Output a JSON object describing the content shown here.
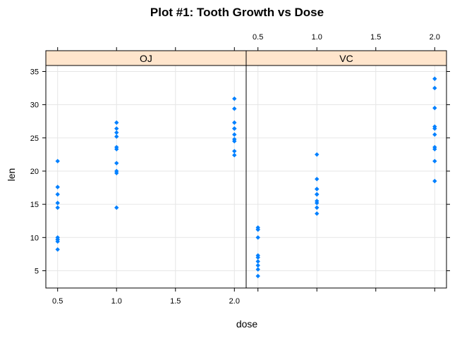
{
  "chart_data": {
    "type": "scatter",
    "title": "Plot #1: Tooth Growth vs Dose",
    "xlabel": "dose",
    "ylabel": "len",
    "xlim": [
      0.4,
      2.1
    ],
    "ylim": [
      2.4,
      35.9
    ],
    "xticks": [
      0.5,
      1.0,
      1.5,
      2.0
    ],
    "xtick_labels": [
      "0.5",
      "1.0",
      "1.5",
      "2.0"
    ],
    "yticks": [
      5,
      10,
      15,
      20,
      25,
      30,
      35
    ],
    "ytick_labels": [
      "5",
      "10",
      "15",
      "20",
      "25",
      "30",
      "35"
    ],
    "grid": true,
    "point_color": "#0080ff",
    "strip_color": "#ffe5cc",
    "panels": [
      {
        "name": "OJ",
        "points": [
          {
            "x": 0.5,
            "y": 15.2
          },
          {
            "x": 0.5,
            "y": 21.5
          },
          {
            "x": 0.5,
            "y": 17.6
          },
          {
            "x": 0.5,
            "y": 9.7
          },
          {
            "x": 0.5,
            "y": 14.5
          },
          {
            "x": 0.5,
            "y": 10.0
          },
          {
            "x": 0.5,
            "y": 8.2
          },
          {
            "x": 0.5,
            "y": 9.4
          },
          {
            "x": 0.5,
            "y": 16.5
          },
          {
            "x": 0.5,
            "y": 9.7
          },
          {
            "x": 1.0,
            "y": 19.7
          },
          {
            "x": 1.0,
            "y": 23.3
          },
          {
            "x": 1.0,
            "y": 23.6
          },
          {
            "x": 1.0,
            "y": 26.4
          },
          {
            "x": 1.0,
            "y": 20.0
          },
          {
            "x": 1.0,
            "y": 25.2
          },
          {
            "x": 1.0,
            "y": 25.8
          },
          {
            "x": 1.0,
            "y": 21.2
          },
          {
            "x": 1.0,
            "y": 14.5
          },
          {
            "x": 1.0,
            "y": 27.3
          },
          {
            "x": 2.0,
            "y": 25.5
          },
          {
            "x": 2.0,
            "y": 26.4
          },
          {
            "x": 2.0,
            "y": 22.4
          },
          {
            "x": 2.0,
            "y": 24.5
          },
          {
            "x": 2.0,
            "y": 24.8
          },
          {
            "x": 2.0,
            "y": 30.9
          },
          {
            "x": 2.0,
            "y": 26.4
          },
          {
            "x": 2.0,
            "y": 27.3
          },
          {
            "x": 2.0,
            "y": 29.4
          },
          {
            "x": 2.0,
            "y": 23.0
          }
        ]
      },
      {
        "name": "VC",
        "points": [
          {
            "x": 0.5,
            "y": 4.2
          },
          {
            "x": 0.5,
            "y": 11.5
          },
          {
            "x": 0.5,
            "y": 7.3
          },
          {
            "x": 0.5,
            "y": 5.8
          },
          {
            "x": 0.5,
            "y": 6.4
          },
          {
            "x": 0.5,
            "y": 10.0
          },
          {
            "x": 0.5,
            "y": 11.2
          },
          {
            "x": 0.5,
            "y": 11.2
          },
          {
            "x": 0.5,
            "y": 5.2
          },
          {
            "x": 0.5,
            "y": 7.0
          },
          {
            "x": 1.0,
            "y": 16.5
          },
          {
            "x": 1.0,
            "y": 16.5
          },
          {
            "x": 1.0,
            "y": 15.2
          },
          {
            "x": 1.0,
            "y": 17.3
          },
          {
            "x": 1.0,
            "y": 22.5
          },
          {
            "x": 1.0,
            "y": 17.3
          },
          {
            "x": 1.0,
            "y": 13.6
          },
          {
            "x": 1.0,
            "y": 14.5
          },
          {
            "x": 1.0,
            "y": 18.8
          },
          {
            "x": 1.0,
            "y": 15.5
          },
          {
            "x": 2.0,
            "y": 23.6
          },
          {
            "x": 2.0,
            "y": 18.5
          },
          {
            "x": 2.0,
            "y": 33.9
          },
          {
            "x": 2.0,
            "y": 25.5
          },
          {
            "x": 2.0,
            "y": 26.4
          },
          {
            "x": 2.0,
            "y": 32.5
          },
          {
            "x": 2.0,
            "y": 26.7
          },
          {
            "x": 2.0,
            "y": 21.5
          },
          {
            "x": 2.0,
            "y": 23.3
          },
          {
            "x": 2.0,
            "y": 29.5
          }
        ]
      }
    ]
  }
}
